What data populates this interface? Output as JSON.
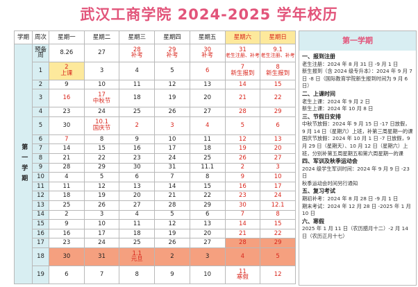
{
  "title": "武汉工商学院 2024-2025 学年校历",
  "header": {
    "semester": "学期",
    "week": "周次",
    "days": [
      "星期一",
      "星期二",
      "星期三",
      "星期四",
      "星期五",
      "星期六",
      "星期日"
    ]
  },
  "semester_label": "第一学期",
  "weeks": [
    {
      "week": "预备周",
      "cells": [
        {
          "d": "8.26"
        },
        {
          "d": "27"
        },
        {
          "d": "28",
          "n": "补考",
          "red": true
        },
        {
          "d": "29",
          "n": "补考",
          "red": true
        },
        {
          "d": "30",
          "n": "补考",
          "red": true
        },
        {
          "d": "31",
          "n": "老生注册、补考"
        },
        {
          "d": "9.1",
          "n": "老生注册、补考"
        }
      ]
    },
    {
      "week": "1",
      "cells": [
        {
          "d": "2",
          "n": "上课",
          "red": true,
          "hl": "yellow"
        },
        {
          "d": "3"
        },
        {
          "d": "4"
        },
        {
          "d": "5"
        },
        {
          "d": "6",
          "red": true
        },
        {
          "d": "7",
          "n": "新生报到"
        },
        {
          "d": "8",
          "n": "新生报到"
        }
      ]
    },
    {
      "week": "2",
      "cells": [
        {
          "d": "9"
        },
        {
          "d": "10"
        },
        {
          "d": "11"
        },
        {
          "d": "12"
        },
        {
          "d": "13"
        },
        {
          "d": "14"
        },
        {
          "d": "15"
        }
      ]
    },
    {
      "week": "3",
      "cells": [
        {
          "d": "16",
          "red": true
        },
        {
          "d": "17",
          "n": "中秋节",
          "red": true
        },
        {
          "d": "18"
        },
        {
          "d": "19"
        },
        {
          "d": "20"
        },
        {
          "d": "21"
        },
        {
          "d": "22"
        }
      ]
    },
    {
      "week": "4",
      "cells": [
        {
          "d": "23"
        },
        {
          "d": "24"
        },
        {
          "d": "25"
        },
        {
          "d": "26"
        },
        {
          "d": "27"
        },
        {
          "d": "28"
        },
        {
          "d": "29"
        }
      ]
    },
    {
      "week": "5",
      "cells": [
        {
          "d": "30"
        },
        {
          "d": "10.1",
          "n": "国庆节",
          "red": true
        },
        {
          "d": "2",
          "red": true
        },
        {
          "d": "3",
          "red": true
        },
        {
          "d": "4",
          "red": true
        },
        {
          "d": "5"
        },
        {
          "d": "6"
        }
      ]
    },
    {
      "week": "6",
      "cells": [
        {
          "d": "7",
          "red": true
        },
        {
          "d": "8"
        },
        {
          "d": "9"
        },
        {
          "d": "10"
        },
        {
          "d": "11"
        },
        {
          "d": "12"
        },
        {
          "d": "13"
        }
      ]
    },
    {
      "week": "7",
      "cells": [
        {
          "d": "14"
        },
        {
          "d": "15"
        },
        {
          "d": "16"
        },
        {
          "d": "17"
        },
        {
          "d": "18"
        },
        {
          "d": "19"
        },
        {
          "d": "20"
        }
      ]
    },
    {
      "week": "8",
      "cells": [
        {
          "d": "21"
        },
        {
          "d": "22"
        },
        {
          "d": "23"
        },
        {
          "d": "24"
        },
        {
          "d": "25"
        },
        {
          "d": "26"
        },
        {
          "d": "27"
        }
      ]
    },
    {
      "week": "9",
      "cells": [
        {
          "d": "28"
        },
        {
          "d": "29"
        },
        {
          "d": "30"
        },
        {
          "d": "31"
        },
        {
          "d": "11.1"
        },
        {
          "d": "2"
        },
        {
          "d": "3"
        }
      ]
    },
    {
      "week": "10",
      "cells": [
        {
          "d": "4"
        },
        {
          "d": "5"
        },
        {
          "d": "6"
        },
        {
          "d": "7"
        },
        {
          "d": "8"
        },
        {
          "d": "9"
        },
        {
          "d": "10"
        }
      ]
    },
    {
      "week": "11",
      "cells": [
        {
          "d": "11"
        },
        {
          "d": "12"
        },
        {
          "d": "13"
        },
        {
          "d": "14"
        },
        {
          "d": "15"
        },
        {
          "d": "16"
        },
        {
          "d": "17"
        }
      ]
    },
    {
      "week": "12",
      "cells": [
        {
          "d": "18"
        },
        {
          "d": "19"
        },
        {
          "d": "20"
        },
        {
          "d": "21"
        },
        {
          "d": "22"
        },
        {
          "d": "23"
        },
        {
          "d": "24"
        }
      ]
    },
    {
      "week": "13",
      "cells": [
        {
          "d": "25"
        },
        {
          "d": "26"
        },
        {
          "d": "27"
        },
        {
          "d": "28"
        },
        {
          "d": "29"
        },
        {
          "d": "30"
        },
        {
          "d": "12.1"
        }
      ]
    },
    {
      "week": "14",
      "cells": [
        {
          "d": "2"
        },
        {
          "d": "3"
        },
        {
          "d": "4"
        },
        {
          "d": "5"
        },
        {
          "d": "6"
        },
        {
          "d": "7"
        },
        {
          "d": "8"
        }
      ]
    },
    {
      "week": "15",
      "cells": [
        {
          "d": "9"
        },
        {
          "d": "10"
        },
        {
          "d": "11"
        },
        {
          "d": "12"
        },
        {
          "d": "13"
        },
        {
          "d": "14"
        },
        {
          "d": "15"
        }
      ]
    },
    {
      "week": "16",
      "cells": [
        {
          "d": "16"
        },
        {
          "d": "17"
        },
        {
          "d": "18"
        },
        {
          "d": "19"
        },
        {
          "d": "20"
        },
        {
          "d": "21"
        },
        {
          "d": "22"
        }
      ]
    },
    {
      "week": "17",
      "cells": [
        {
          "d": "23"
        },
        {
          "d": "24"
        },
        {
          "d": "25"
        },
        {
          "d": "26"
        },
        {
          "d": "27"
        },
        {
          "d": "28",
          "hl": "orange"
        },
        {
          "d": "29",
          "hl": "orange"
        }
      ]
    },
    {
      "week": "18",
      "cells": [
        {
          "d": "30",
          "hl": "orange"
        },
        {
          "d": "31",
          "hl": "orange"
        },
        {
          "d": "1.1",
          "n": "元旦",
          "red": true,
          "hl": "orange"
        },
        {
          "d": "2",
          "hl": "orange"
        },
        {
          "d": "3",
          "hl": "orange"
        },
        {
          "d": "4",
          "hl": "orange"
        },
        {
          "d": "5",
          "hl": "orange"
        }
      ]
    },
    {
      "week": "19",
      "cells": [
        {
          "d": "6"
        },
        {
          "d": "7"
        },
        {
          "d": "8"
        },
        {
          "d": "9"
        },
        {
          "d": "10"
        },
        {
          "d": "11",
          "n": "寒假"
        },
        {
          "d": "12"
        }
      ]
    }
  ],
  "panel": {
    "title": "第一学期",
    "sections": [
      {
        "head": "一、报到注册",
        "lines": [
          "老生注册：2024 年 8 月 31 日 -9 月 1 日",
          "新生报到（含 2024 级专升本）：2024 年 9 月 7 日 -8 日（国际教育学院新生报到时间为 9 月 6 日）"
        ]
      },
      {
        "head": "二、上课时间",
        "lines": [
          "老生上课：2024 年 9 月 2 日",
          "新生上课：2024 年 10 月 8 日"
        ]
      },
      {
        "head": "三、节假日安排",
        "lines": [
          "中秋节放假：2024 年 9 月 15 日 -17 日放假，9 月 14 日（星期六）上班，补第三周星期一的课",
          "国庆节放假：2024 年 10 月 1 日 -7 日放假，9 月 29 日（星期天）、10 月 12 日（星期六）上班，分别补第五周星期五和第六周星期一的课"
        ]
      },
      {
        "head": "四、军训及秋季运动会",
        "lines": [
          "2024 级学生军训时间：2024 年 9 月 9 日 -23 日",
          "秋季运动会时间另行通知"
        ]
      },
      {
        "head": "五、复习考试",
        "lines": [
          "期初补考：2024 年 8 月 28 日 -9 月 1 日",
          "期末考试：2024 年 12 月 28 日 -2025 年 1 月 10 日"
        ]
      },
      {
        "head": "六、寒假",
        "lines": [
          "2025 年 1 月 11 日（农历腊月十二）-2 月 14 日（农历正月十七）"
        ]
      }
    ]
  },
  "colors": {
    "title": "#e2547a",
    "red": "#d9261c",
    "yellow": "#fde99c",
    "orange": "#f5a07f",
    "teal": "#d8eef2"
  }
}
